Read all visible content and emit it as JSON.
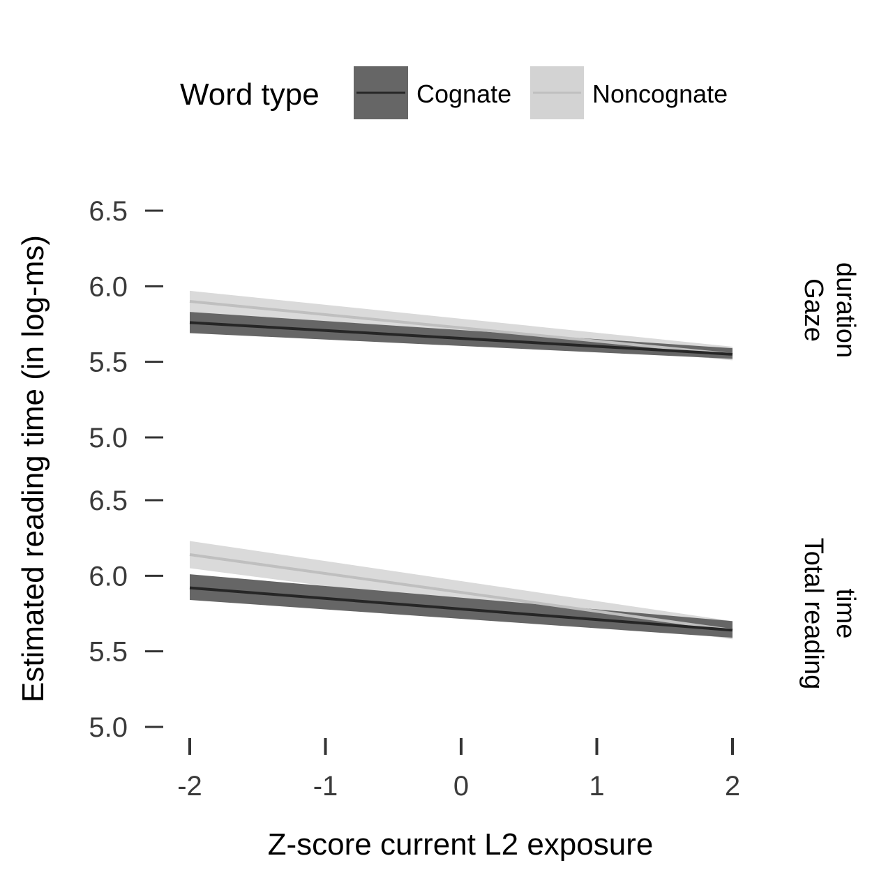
{
  "chart_data": {
    "type": "line",
    "xlabel": "Z-score current L2 exposure",
    "ylabel": "Estimated reading time (in log-ms)",
    "legend": {
      "title": "Word type",
      "position": "top",
      "entries": [
        {
          "label": "Cognate",
          "line_color": "#262626",
          "fill_color": "#666666"
        },
        {
          "label": "Noncognate",
          "line_color": "#bfbfbf",
          "fill_color": "#d3d3d3"
        }
      ]
    },
    "x_ticks": [
      "-2",
      "-1",
      "0",
      "1",
      "2"
    ],
    "y_ticks": [
      "5.0",
      "5.5",
      "6.0",
      "6.5"
    ],
    "xlim": [
      -2,
      2
    ],
    "ylim": [
      5.0,
      6.5
    ],
    "grid": false,
    "panels": [
      {
        "strip_lines": [
          "Gaze",
          "duration"
        ],
        "series": [
          {
            "name": "Cognate",
            "x": [
              -2,
              2
            ],
            "y": [
              5.76,
              5.55
            ],
            "lower": [
              5.69,
              5.52
            ],
            "upper": [
              5.83,
              5.59
            ]
          },
          {
            "name": "Noncognate",
            "x": [
              -2,
              2
            ],
            "y": [
              5.9,
              5.55
            ],
            "lower": [
              5.83,
              5.51
            ],
            "upper": [
              5.97,
              5.6
            ]
          }
        ]
      },
      {
        "strip_lines": [
          "Total reading",
          "time"
        ],
        "series": [
          {
            "name": "Cognate",
            "x": [
              -2,
              2
            ],
            "y": [
              5.92,
              5.64
            ],
            "lower": [
              5.84,
              5.59
            ],
            "upper": [
              6.01,
              5.7
            ]
          },
          {
            "name": "Noncognate",
            "x": [
              -2,
              2
            ],
            "y": [
              6.14,
              5.64
            ],
            "lower": [
              6.05,
              5.58
            ],
            "upper": [
              6.23,
              5.7
            ]
          }
        ]
      }
    ]
  }
}
